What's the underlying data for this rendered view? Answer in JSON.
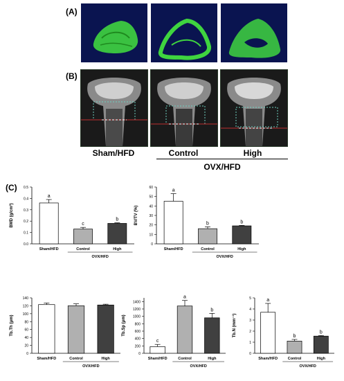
{
  "panels": {
    "a": "(A)",
    "b": "(B)",
    "c": "(C)"
  },
  "groups": {
    "sham": "Sham/HFD",
    "control": "Control",
    "high": "High",
    "ovx": "OVX/HFD"
  },
  "colors": {
    "ct_background": "#0a1450",
    "bone_green": "#3fd43f",
    "bar_sham": "#ffffff",
    "bar_control": "#b0b0b0",
    "bar_high": "#404040"
  },
  "chart_data": [
    {
      "type": "bar",
      "ylabel": "BMD (g/cm³)",
      "ylim": [
        0,
        0.5
      ],
      "yticks": [
        "0.0",
        "0.1",
        "0.2",
        "0.3",
        "0.4",
        "0.5"
      ],
      "categories": [
        "Sham/HFD",
        "Control",
        "High"
      ],
      "values": [
        0.36,
        0.13,
        0.18
      ],
      "errors": [
        0.03,
        0.015,
        0.005
      ],
      "letters": [
        "a",
        "c",
        "b"
      ],
      "group_label": "OVX/HFD"
    },
    {
      "type": "bar",
      "ylabel": "BV/TV (%)",
      "ylim": [
        0,
        60
      ],
      "yticks": [
        "0",
        "10",
        "20",
        "30",
        "40",
        "50",
        "60"
      ],
      "categories": [
        "Sham/HFD",
        "Control",
        "High"
      ],
      "values": [
        45,
        16,
        19
      ],
      "errors": [
        8,
        2,
        0.5
      ],
      "letters": [
        "a",
        "b",
        "b"
      ],
      "group_label": "OVX/HFD"
    },
    {
      "type": "bar",
      "ylabel": "Tb.Th (μm)",
      "ylim": [
        0,
        140
      ],
      "yticks": [
        "0",
        "20",
        "40",
        "60",
        "80",
        "100",
        "120",
        "140"
      ],
      "categories": [
        "Sham/HFD",
        "Control",
        "High"
      ],
      "values": [
        123,
        120,
        122
      ],
      "errors": [
        4,
        5,
        2
      ],
      "letters": [
        "",
        "",
        ""
      ],
      "group_label": "OVX/HFD"
    },
    {
      "type": "bar",
      "ylabel": "Tb.Sp (μm)",
      "ylim": [
        0,
        1500
      ],
      "yticks": [
        "0",
        "200",
        "400",
        "600",
        "800",
        "1000",
        "1200",
        "1400"
      ],
      "categories": [
        "Sham/HFD",
        "Control",
        "High"
      ],
      "values": [
        180,
        1280,
        960
      ],
      "errors": [
        60,
        150,
        120
      ],
      "letters": [
        "c",
        "a",
        "b"
      ],
      "group_label": "OVX/HFD"
    },
    {
      "type": "bar",
      "ylabel": "Tb.N (mm⁻¹)",
      "ylim": [
        0,
        5
      ],
      "yticks": [
        "0",
        "1",
        "2",
        "3",
        "4",
        "5"
      ],
      "categories": [
        "Sham/HFD",
        "Control",
        "High"
      ],
      "values": [
        3.7,
        1.1,
        1.55
      ],
      "errors": [
        0.8,
        0.15,
        0.05
      ],
      "letters": [
        "a",
        "b",
        "b"
      ],
      "group_label": "OVX/HFD"
    }
  ]
}
